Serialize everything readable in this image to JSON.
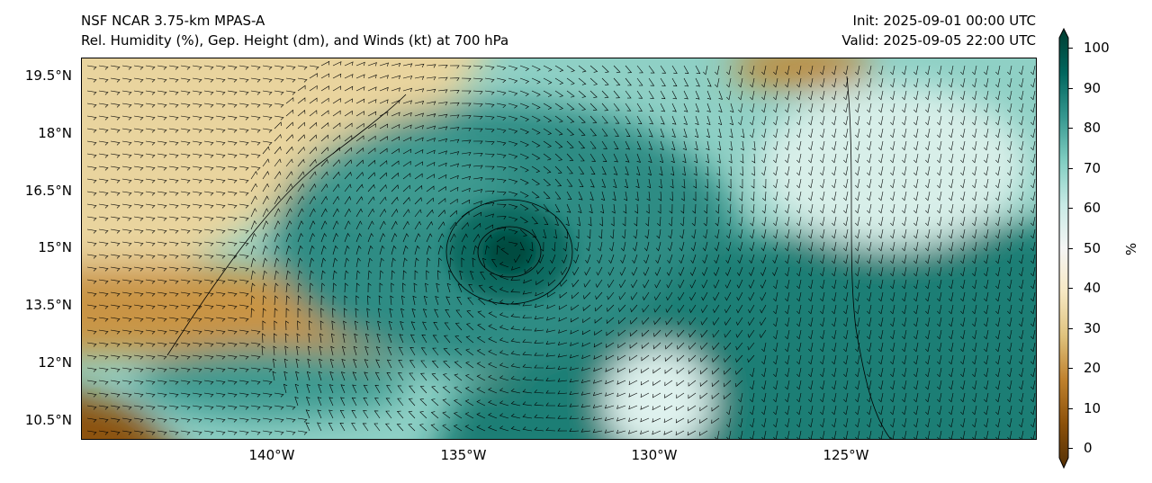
{
  "header": {
    "model": "NSF NCAR 3.75-km MPAS-A",
    "fields": "Rel. Humidity (%), Gep. Height (dm), and Winds (kt) at 700 hPa",
    "init": "Init: 2025-09-01 00:00 UTC",
    "valid": "Valid: 2025-09-05 22:00 UTC"
  },
  "map": {
    "lat_ticks": [
      "19.5°N",
      "18°N",
      "16.5°N",
      "15°N",
      "13.5°N",
      "12°N",
      "10.5°N"
    ],
    "lon_ticks": [
      "140°W",
      "135°W",
      "130°W",
      "125°W"
    ]
  },
  "colorbar": {
    "label": "%",
    "ticks": [
      "100",
      "90",
      "80",
      "70",
      "60",
      "50",
      "40",
      "30",
      "20",
      "10",
      "0"
    ],
    "colors": [
      "#543005",
      "#8c510a",
      "#bf812d",
      "#dfc27d",
      "#f6e8c3",
      "#f5f5f5",
      "#c7eae5",
      "#80cdc1",
      "#35978f",
      "#01665e",
      "#003c30"
    ]
  }
}
